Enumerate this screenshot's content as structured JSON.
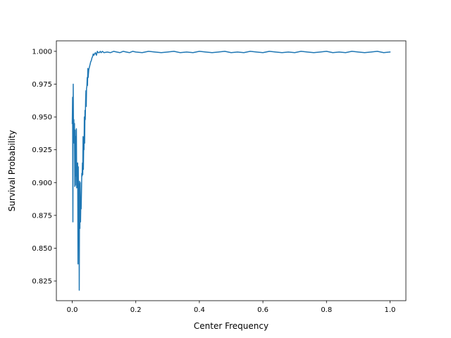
{
  "chart_data": {
    "type": "line",
    "title": "",
    "xlabel": "Center Frequency",
    "ylabel": "Survival Probability",
    "xlim": [
      -0.05,
      1.05
    ],
    "ylim": [
      0.81,
      1.008
    ],
    "xticks": [
      0.0,
      0.2,
      0.4,
      0.6,
      0.8,
      1.0
    ],
    "xtick_labels": [
      "0.0",
      "0.2",
      "0.4",
      "0.6",
      "0.8",
      "1.0"
    ],
    "yticks": [
      0.825,
      0.85,
      0.875,
      0.9,
      0.925,
      0.95,
      0.975,
      1.0
    ],
    "ytick_labels": [
      "0.825",
      "0.850",
      "0.875",
      "0.900",
      "0.925",
      "0.950",
      "0.975",
      "1.000"
    ],
    "grid": false,
    "line_color": "#1f77b4",
    "series": [
      {
        "x": [
          0.0,
          0.001,
          0.002,
          0.003,
          0.004,
          0.005,
          0.006,
          0.007,
          0.008,
          0.009,
          0.01,
          0.011,
          0.012,
          0.013,
          0.014,
          0.015,
          0.016,
          0.017,
          0.018,
          0.019,
          0.02,
          0.021,
          0.022,
          0.023,
          0.024,
          0.025,
          0.026,
          0.027,
          0.028,
          0.029,
          0.03,
          0.031,
          0.032,
          0.033,
          0.034,
          0.035,
          0.036,
          0.037,
          0.038,
          0.039,
          0.04,
          0.041,
          0.042,
          0.043,
          0.044,
          0.045,
          0.046,
          0.047,
          0.048,
          0.049,
          0.05,
          0.052,
          0.054,
          0.056,
          0.058,
          0.06,
          0.062,
          0.064,
          0.066,
          0.068,
          0.07,
          0.073,
          0.076,
          0.079,
          0.082,
          0.085,
          0.088,
          0.091,
          0.095,
          0.1,
          0.11,
          0.12,
          0.13,
          0.14,
          0.15,
          0.16,
          0.17,
          0.18,
          0.19,
          0.2,
          0.22,
          0.24,
          0.26,
          0.28,
          0.3,
          0.32,
          0.34,
          0.36,
          0.38,
          0.4,
          0.42,
          0.44,
          0.46,
          0.48,
          0.5,
          0.52,
          0.54,
          0.56,
          0.58,
          0.6,
          0.62,
          0.64,
          0.66,
          0.68,
          0.7,
          0.72,
          0.74,
          0.76,
          0.78,
          0.8,
          0.82,
          0.84,
          0.86,
          0.88,
          0.9,
          0.92,
          0.94,
          0.96,
          0.98,
          1.0
        ],
        "y": [
          0.945,
          0.965,
          0.87,
          0.975,
          0.935,
          0.948,
          0.93,
          0.945,
          0.897,
          0.94,
          0.898,
          0.935,
          0.905,
          0.941,
          0.896,
          0.91,
          0.9,
          0.915,
          0.838,
          0.912,
          0.87,
          0.899,
          0.818,
          0.901,
          0.865,
          0.9,
          0.87,
          0.885,
          0.88,
          0.893,
          0.907,
          0.905,
          0.915,
          0.906,
          0.935,
          0.91,
          0.928,
          0.925,
          0.95,
          0.93,
          0.955,
          0.948,
          0.962,
          0.97,
          0.958,
          0.972,
          0.973,
          0.98,
          0.974,
          0.987,
          0.98,
          0.986,
          0.988,
          0.99,
          0.992,
          0.993,
          0.995,
          0.996,
          0.998,
          0.997,
          0.998,
          0.999,
          0.997,
          1.0,
          0.999,
          0.999,
          1.0,
          0.999,
          1.0,
          0.999,
          0.9995,
          0.999,
          1.0,
          0.9995,
          0.999,
          1.0,
          0.9995,
          0.999,
          1.0,
          0.9995,
          0.999,
          1.0,
          0.9995,
          0.999,
          0.9995,
          1.0,
          0.999,
          0.9995,
          0.999,
          1.0,
          0.9995,
          0.999,
          0.9995,
          1.0,
          0.999,
          0.9995,
          0.999,
          1.0,
          0.9995,
          0.999,
          1.0,
          0.9995,
          0.999,
          0.9995,
          0.999,
          1.0,
          0.9995,
          0.999,
          0.9995,
          1.0,
          0.999,
          0.9995,
          0.999,
          1.0,
          0.9995,
          0.999,
          0.9995,
          1.0,
          0.999,
          0.9995
        ]
      }
    ]
  }
}
